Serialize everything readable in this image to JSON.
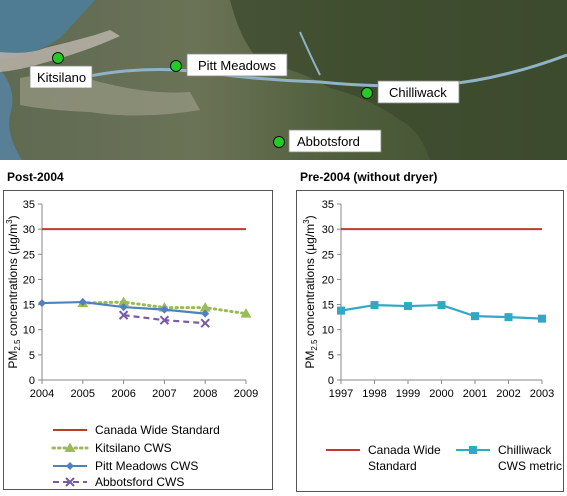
{
  "map": {
    "sites": [
      {
        "label": "Kitsilano"
      },
      {
        "label": "Pitt Meadows"
      },
      {
        "label": "Chilliwack"
      },
      {
        "label": "Abbotsford"
      }
    ],
    "marker_color": "#22cc22"
  },
  "panels": {
    "left_title": "Post-2004",
    "right_title": "Pre-2004 (without dryer)"
  },
  "chart_data": [
    {
      "type": "line",
      "title": "Post-2004",
      "ylabel": "PM2.5 concentrations (µg/m3)",
      "xlim": [
        2004,
        2009
      ],
      "ylim": [
        0,
        35
      ],
      "x_ticks": [
        2004,
        2005,
        2006,
        2007,
        2008,
        2009
      ],
      "y_ticks": [
        0,
        5,
        10,
        15,
        20,
        25,
        30,
        35
      ],
      "grid": false,
      "legend_position": "bottom",
      "series": [
        {
          "name": "Canada Wide Standard",
          "x": [
            2004,
            2009
          ],
          "y": [
            30,
            30
          ],
          "color": "#c0392b",
          "style": "solid",
          "marker": "none"
        },
        {
          "name": "Kitsilano CWS",
          "x": [
            2005,
            2006,
            2007,
            2008,
            2009
          ],
          "y": [
            15.3,
            15.5,
            14.4,
            14.4,
            13.2
          ],
          "color": "#9bbb59",
          "style": "dotted",
          "marker": "triangle"
        },
        {
          "name": "Pitt Meadows CWS",
          "x": [
            2004,
            2005,
            2006,
            2007,
            2008
          ],
          "y": [
            15.3,
            15.5,
            14.5,
            14.0,
            13.2
          ],
          "color": "#4f81bd",
          "style": "solid",
          "marker": "diamond"
        },
        {
          "name": "Abbotsford CWS",
          "x": [
            2006,
            2007,
            2008
          ],
          "y": [
            12.9,
            11.9,
            11.3
          ],
          "color": "#7a5aa6",
          "style": "dashed",
          "marker": "x"
        }
      ]
    },
    {
      "type": "line",
      "title": "Pre-2004 (without dryer)",
      "ylabel": "PM2.5 concentrations (µg/m3)",
      "xlim": [
        1997,
        2003
      ],
      "ylim": [
        0,
        35
      ],
      "x_ticks": [
        1997,
        1998,
        1999,
        2000,
        2001,
        2002,
        2003
      ],
      "y_ticks": [
        0,
        5,
        10,
        15,
        20,
        25,
        30,
        35
      ],
      "grid": false,
      "legend_position": "bottom",
      "series": [
        {
          "name": "Canada Wide Standard",
          "x": [
            1997,
            2003
          ],
          "y": [
            30,
            30
          ],
          "color": "#c0392b",
          "style": "solid",
          "marker": "none"
        },
        {
          "name": "Chilliwack CWS metric",
          "x": [
            1997,
            1998,
            1999,
            2000,
            2001,
            2002,
            2003
          ],
          "y": [
            13.8,
            14.9,
            14.7,
            14.9,
            12.7,
            12.5,
            12.2
          ],
          "color": "#31a9c4",
          "style": "solid",
          "marker": "square"
        }
      ]
    }
  ]
}
